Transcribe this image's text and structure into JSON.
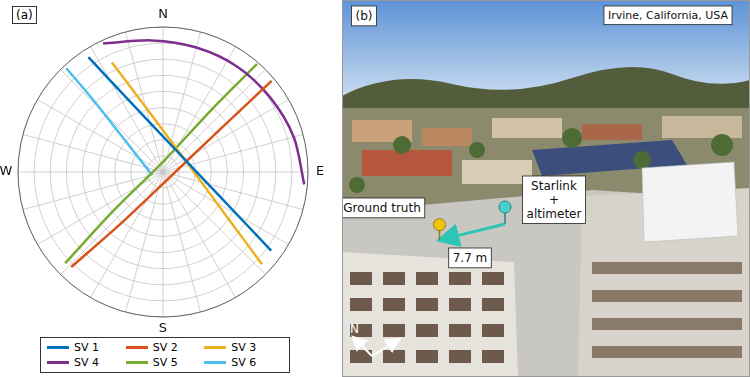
{
  "chart_data": {
    "type": "skyplot",
    "panel_label": "(a)",
    "elevation_lim": [
      0,
      90
    ],
    "elevation_ticks": [
      0,
      10,
      20,
      30,
      40,
      50,
      60,
      70,
      80
    ],
    "azimuth_ticks": [
      0,
      15,
      30,
      45,
      60,
      75,
      90,
      105,
      120,
      135,
      150,
      165,
      180,
      195,
      210,
      225,
      240,
      255,
      270,
      285,
      300,
      315,
      330,
      345
    ],
    "directions": [
      {
        "value": 0,
        "label": "N"
      },
      {
        "value": 90,
        "label": "E"
      },
      {
        "value": 180,
        "label": "S"
      },
      {
        "value": 270,
        "label": "W"
      }
    ],
    "tick_labels": false,
    "grid": true,
    "legend": "bottom",
    "series": [
      {
        "name": "SV 1",
        "color": "#0072bd",
        "azimuth": [
          327,
          335,
          28,
          113,
          126
        ],
        "elevation": [
          5,
          42,
          74,
          52,
          7
        ]
      },
      {
        "name": "SV 2",
        "color": "#d95319",
        "azimuth": [
          224,
          219,
          108,
          53,
          50
        ],
        "elevation": [
          8,
          50,
          84,
          44,
          2
        ]
      },
      {
        "name": "SV 3",
        "color": "#edb120",
        "azimuth": [
          335,
          348,
          69,
          124,
          133
        ],
        "elevation": [
          15,
          53,
          74,
          44,
          6
        ]
      },
      {
        "name": "SV 4",
        "color": "#7e2f8e",
        "azimuth": [
          335,
          355,
          15,
          35,
          55,
          75,
          95
        ],
        "elevation": [
          2,
          8,
          10,
          10,
          9,
          6,
          2
        ]
      },
      {
        "name": "SV 5",
        "color": "#77ac30",
        "azimuth": [
          41,
          38,
          5,
          232,
          227
        ],
        "elevation": [
          1,
          40,
          83,
          51,
          7
        ]
      },
      {
        "name": "SV 6",
        "color": "#4dbeee",
        "azimuth": [
          317,
          316,
          311,
          255
        ],
        "elevation": [
          2,
          26,
          56,
          83
        ]
      }
    ]
  },
  "photo": {
    "panel_label": "(b)",
    "location": "Irvine, California, USA",
    "ground_truth_label": "Ground truth",
    "receiver_label": [
      "Starlink",
      "+",
      "altimeter"
    ],
    "distance": {
      "value": 7.7,
      "label": "7.7 m"
    },
    "north_label": "N"
  }
}
